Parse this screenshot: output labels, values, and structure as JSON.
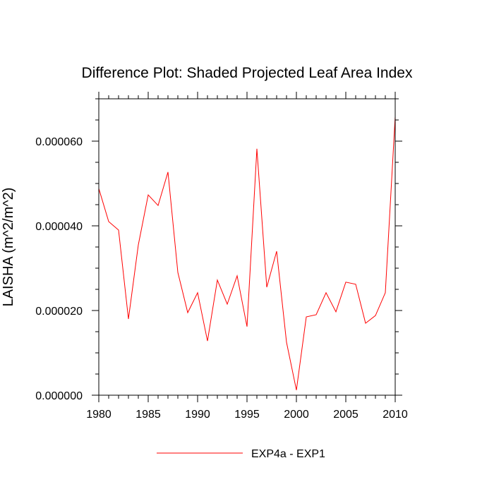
{
  "chart_data": {
    "type": "line",
    "title": "Difference Plot: Shaded Projected Leaf Area Index",
    "xlabel": "",
    "ylabel": "LAISHA  (m^2/m^2)",
    "xlim": [
      1980,
      2010
    ],
    "ylim": [
      0,
      7e-05
    ],
    "x_ticks": [
      1980,
      1985,
      1990,
      1995,
      2000,
      2005,
      2010
    ],
    "x_tick_labels": [
      "1980",
      "1985",
      "1990",
      "1995",
      "2000",
      "2005",
      "2010"
    ],
    "y_ticks": [
      0,
      2e-05,
      4e-05,
      6e-05
    ],
    "y_tick_labels": [
      "0.000000",
      "0.000020",
      "0.000040",
      "0.000060"
    ],
    "grid": false,
    "legend_position": "bottom-center",
    "series": [
      {
        "name": "EXP4a - EXP1",
        "color": "#ff0000",
        "x": [
          1980,
          1981,
          1982,
          1983,
          1984,
          1985,
          1986,
          1987,
          1988,
          1989,
          1990,
          1991,
          1992,
          1993,
          1994,
          1995,
          1996,
          1997,
          1998,
          1999,
          2000,
          2001,
          2002,
          2003,
          2004,
          2005,
          2006,
          2007,
          2008,
          2009,
          2010
        ],
        "values": [
          4.88e-05,
          4.1e-05,
          3.9e-05,
          1.8e-05,
          3.55e-05,
          4.73e-05,
          4.48e-05,
          5.27e-05,
          2.9e-05,
          1.95e-05,
          2.42e-05,
          1.28e-05,
          2.72e-05,
          2.15e-05,
          2.82e-05,
          1.62e-05,
          5.82e-05,
          2.55e-05,
          3.4e-05,
          1.25e-05,
          1.2e-06,
          1.85e-05,
          1.9e-05,
          2.42e-05,
          1.97e-05,
          2.67e-05,
          2.62e-05,
          1.7e-05,
          1.88e-05,
          2.42e-05,
          6.58e-05
        ]
      }
    ]
  }
}
